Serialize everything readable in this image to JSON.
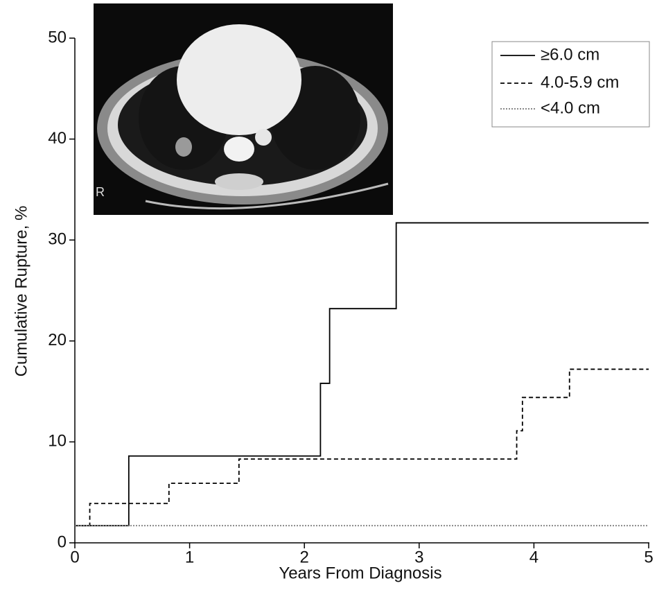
{
  "chart_data": {
    "type": "line",
    "step": "post",
    "x_label": "Years From Diagnosis",
    "y_label": "Cumulative Rupture, %",
    "xlim": [
      0,
      5
    ],
    "xticks": [
      0,
      1,
      2,
      3,
      4,
      5
    ],
    "ylim": [
      0,
      50
    ],
    "yticks": [
      0,
      10,
      20,
      30,
      40,
      50
    ],
    "legend": "top-right",
    "series": [
      {
        "name": "≥6.0 cm",
        "color": "#000000",
        "dash": "solid",
        "x": [
          0,
          0.47,
          2.14,
          2.22,
          2.8,
          5
        ],
        "values": [
          1.7,
          8.6,
          15.8,
          23.2,
          31.7,
          31.7
        ]
      },
      {
        "name": "4.0-5.9 cm",
        "color": "#000000",
        "dash": "dashed",
        "x": [
          0,
          0.13,
          0.82,
          1.43,
          3.85,
          3.9,
          4.31,
          5
        ],
        "values": [
          1.7,
          3.9,
          5.9,
          8.3,
          11.1,
          14.4,
          17.2,
          17.2
        ]
      },
      {
        "name": "<4.0 cm",
        "color": "#777777",
        "dash": "dotted",
        "x": [
          0,
          5
        ],
        "values": [
          1.7,
          1.7
        ]
      }
    ]
  }
}
